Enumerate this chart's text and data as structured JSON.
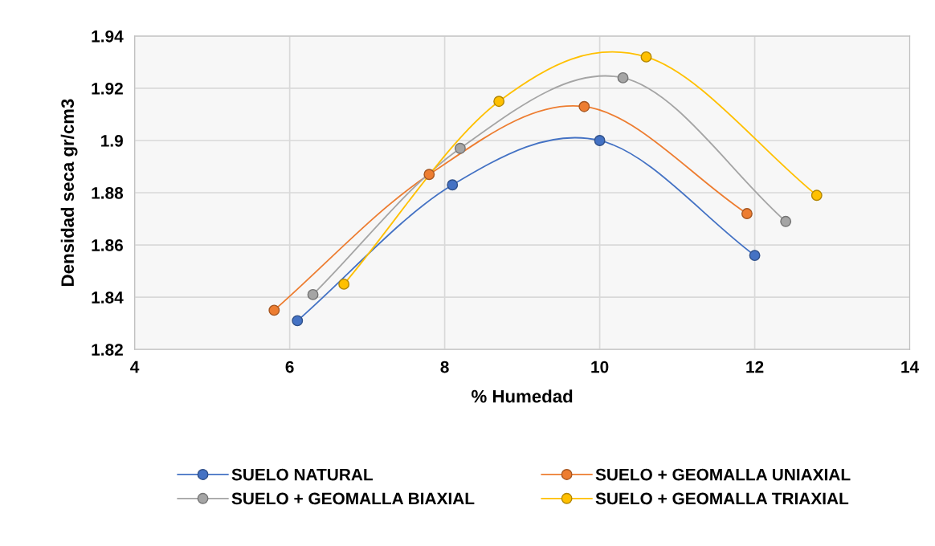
{
  "chart_data": {
    "type": "line",
    "xlabel": "% Humedad",
    "ylabel": "Densidad seca gr/cm3",
    "xlim": [
      4,
      14
    ],
    "xticks": [
      4,
      6,
      8,
      10,
      12,
      14
    ],
    "ylim": [
      1.82,
      1.94
    ],
    "yticks": [
      1.82,
      1.84,
      1.86,
      1.88,
      1.9,
      1.92,
      1.94
    ],
    "grid": true,
    "legend": "bottom",
    "marker": "circle",
    "line_style": "solid",
    "series": [
      {
        "name": "SUELO NATURAL",
        "color": "#4472c4",
        "x": [
          6.1,
          8.1,
          10.0,
          12.0
        ],
        "values": [
          1.831,
          1.883,
          1.9,
          1.856
        ]
      },
      {
        "name": "SUELO + GEOMALLA UNIAXIAL",
        "color": "#ed7d31",
        "x": [
          5.8,
          7.8,
          9.8,
          11.9
        ],
        "values": [
          1.835,
          1.887,
          1.913,
          1.872
        ]
      },
      {
        "name": "SUELO + GEOMALLA BIAXIAL",
        "color": "#a5a5a5",
        "x": [
          6.3,
          8.2,
          10.3,
          12.4
        ],
        "values": [
          1.841,
          1.897,
          1.924,
          1.869
        ]
      },
      {
        "name": "SUELO + GEOMALLA TRIAXIAL",
        "color": "#ffc000",
        "x": [
          6.7,
          8.7,
          10.6,
          12.8
        ],
        "values": [
          1.845,
          1.915,
          1.932,
          1.879
        ]
      }
    ]
  }
}
